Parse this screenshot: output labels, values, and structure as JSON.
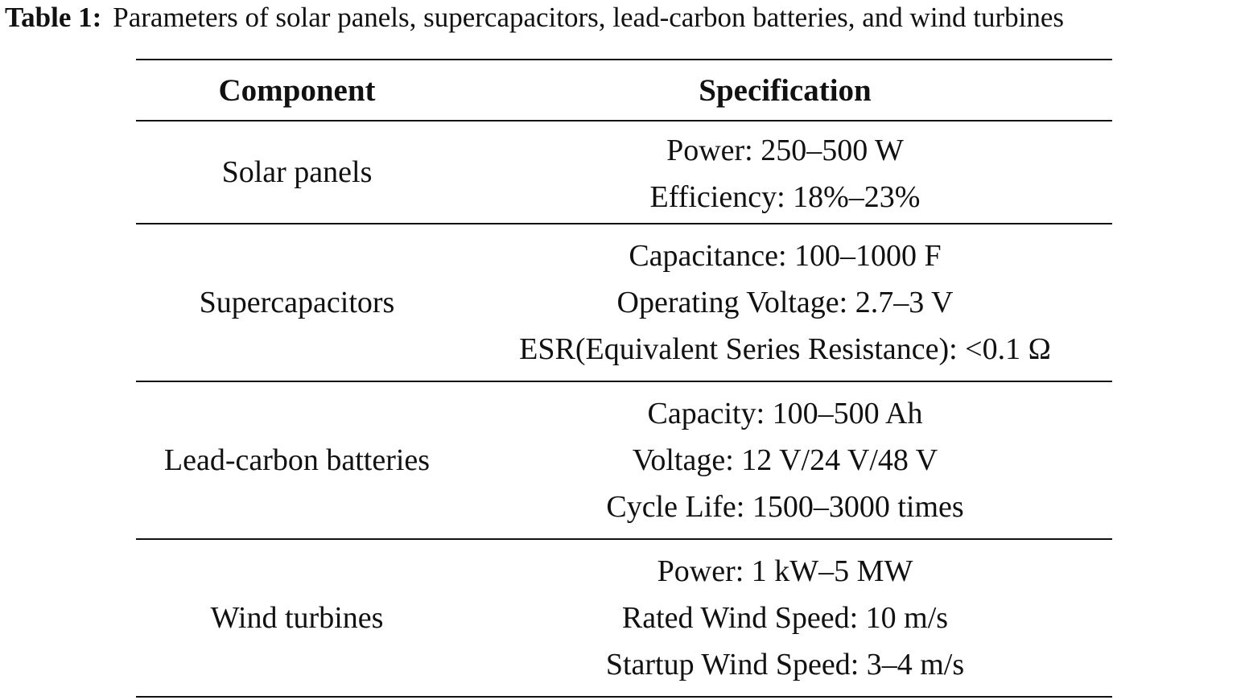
{
  "caption": {
    "label": "Table 1:",
    "text": "Parameters of solar panels, supercapacitors, lead-carbon batteries, and wind turbines"
  },
  "table": {
    "headers": [
      "Component",
      "Specification"
    ],
    "rows": [
      {
        "component": "Solar panels",
        "specs": [
          "Power: 250–500 W",
          "Efficiency: 18%–23%"
        ]
      },
      {
        "component": "Supercapacitors",
        "specs": [
          "Capacitance: 100–1000 F",
          "Operating Voltage: 2.7–3 V",
          "ESR(Equivalent Series Resistance): <0.1 Ω"
        ]
      },
      {
        "component": "Lead-carbon batteries",
        "specs": [
          "Capacity: 100–500 Ah",
          "Voltage: 12 V/24 V/48 V",
          "Cycle Life: 1500–3000 times"
        ]
      },
      {
        "component": "Wind turbines",
        "specs": [
          "Power: 1 kW–5 MW",
          "Rated Wind Speed: 10 m/s",
          "Startup Wind Speed: 3–4 m/s"
        ]
      }
    ]
  }
}
